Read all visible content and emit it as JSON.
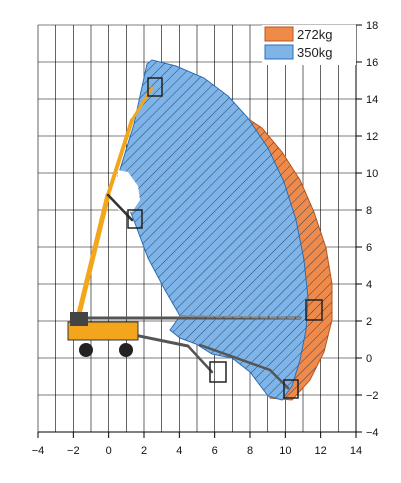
{
  "legend": [
    {
      "label": "272kg",
      "color": "#f08a4a",
      "edge": "#b8561c"
    },
    {
      "label": "350kg",
      "color": "#7fb4e8",
      "edge": "#2c6fb6"
    }
  ],
  "axes": {
    "x_ticks": [
      "−4",
      "−2",
      "0",
      "2",
      "4",
      "6",
      "8",
      "10",
      "12",
      "14"
    ],
    "y_ticks": [
      "18",
      "16",
      "14",
      "12",
      "10",
      "8",
      "6",
      "4",
      "2",
      "0",
      "−2",
      "−4"
    ]
  },
  "colors": {
    "grid": "#000000",
    "machine_yellow": "#f3a51b",
    "machine_dark": "#333333"
  }
}
